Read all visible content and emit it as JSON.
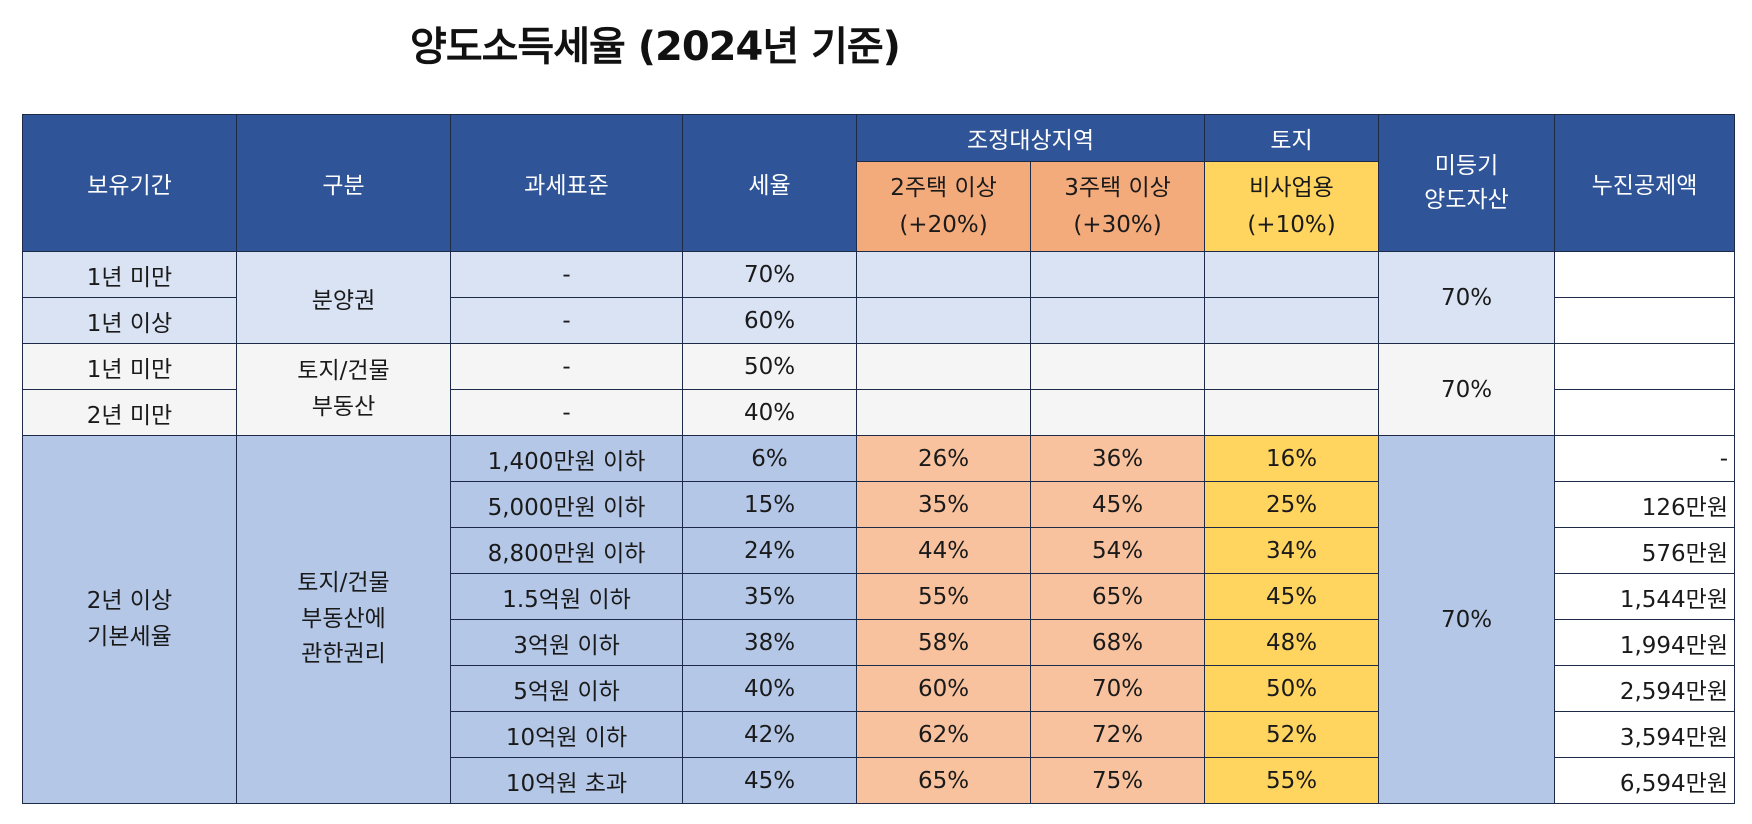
{
  "title": "양도소득세율 (2024년 기준)",
  "headers": {
    "holding_period": "보유기간",
    "category": "구분",
    "tax_base": "과세표준",
    "tax_rate": "세율",
    "adjusted_area": "조정대상지역",
    "land": "토지",
    "two_house_line1": "2주택 이상",
    "two_house_line2": "(+20%)",
    "three_house_line1": "3주택 이상",
    "three_house_line2": "(+30%)",
    "non_business_line1": "비사업용",
    "non_business_line2": "(+10%)",
    "unregistered_line1": "미등기",
    "unregistered_line2": "양도자산",
    "deduction": "누진공제액"
  },
  "short_term": {
    "rows": [
      {
        "period": "1년 미만",
        "tax_base": "-",
        "rate": "70%"
      },
      {
        "period": "1년 이상",
        "tax_base": "-",
        "rate": "60%"
      },
      {
        "period": "1년 미만",
        "tax_base": "-",
        "rate": "50%"
      },
      {
        "period": "2년 미만",
        "tax_base": "-",
        "rate": "40%"
      }
    ],
    "presale_category": "분양권",
    "land_building_line1": "토지/건물",
    "land_building_line2": "부동산",
    "unregistered_1": "70%",
    "unregistered_2": "70%"
  },
  "basic": {
    "period_line1": "2년 이상",
    "period_line2": "기본세율",
    "category_line1": "토지/건물",
    "category_line2": "부동산에",
    "category_line3": "관한권리",
    "unregistered": "70%",
    "rows": [
      {
        "base": "1,400만원 이하",
        "rate": "6%",
        "two": "26%",
        "three": "36%",
        "nonbiz": "16%",
        "deduction": "-"
      },
      {
        "base": "5,000만원 이하",
        "rate": "15%",
        "two": "35%",
        "three": "45%",
        "nonbiz": "25%",
        "deduction": "126만원"
      },
      {
        "base": "8,800만원 이하",
        "rate": "24%",
        "two": "44%",
        "three": "54%",
        "nonbiz": "34%",
        "deduction": "576만원"
      },
      {
        "base": "1.5억원 이하",
        "rate": "35%",
        "two": "55%",
        "three": "65%",
        "nonbiz": "45%",
        "deduction": "1,544만원"
      },
      {
        "base": "3억원 이하",
        "rate": "38%",
        "two": "58%",
        "three": "68%",
        "nonbiz": "48%",
        "deduction": "1,994만원"
      },
      {
        "base": "5억원 이하",
        "rate": "40%",
        "two": "60%",
        "three": "70%",
        "nonbiz": "50%",
        "deduction": "2,594만원"
      },
      {
        "base": "10억원 이하",
        "rate": "42%",
        "two": "62%",
        "three": "72%",
        "nonbiz": "52%",
        "deduction": "3,594만원"
      },
      {
        "base": "10억원 초과",
        "rate": "45%",
        "two": "65%",
        "three": "75%",
        "nonbiz": "55%",
        "deduction": "6,594만원"
      }
    ]
  }
}
